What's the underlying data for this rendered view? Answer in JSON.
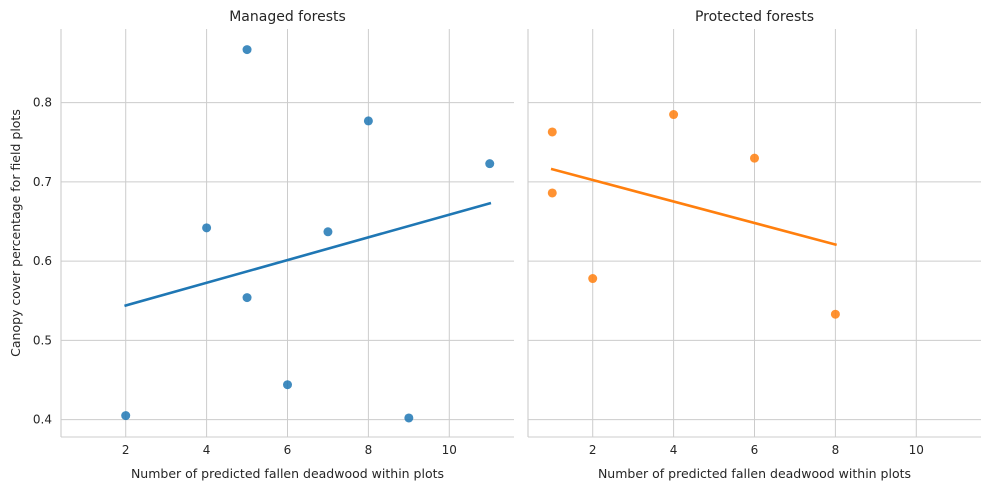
{
  "chart_data": [
    {
      "type": "scatter",
      "title": "Managed forests",
      "xlabel": "Number of predicted fallen deadwood within plots",
      "ylabel": "Canopy cover percentage for field plots",
      "xlim": [
        0.4,
        11.6
      ],
      "ylim": [
        0.378,
        0.893
      ],
      "xticks": [
        2,
        4,
        6,
        8,
        10
      ],
      "yticks": [
        0.4,
        0.5,
        0.6,
        0.7,
        0.8
      ],
      "grid": true,
      "color": "#1f77b4",
      "points": [
        {
          "x": 2,
          "y": 0.405
        },
        {
          "x": 4,
          "y": 0.642
        },
        {
          "x": 5,
          "y": 0.867
        },
        {
          "x": 5,
          "y": 0.554
        },
        {
          "x": 6,
          "y": 0.444
        },
        {
          "x": 7,
          "y": 0.637
        },
        {
          "x": 8,
          "y": 0.777
        },
        {
          "x": 9,
          "y": 0.402
        },
        {
          "x": 11,
          "y": 0.723
        }
      ],
      "regression_line": {
        "x": [
          2,
          11
        ],
        "y": [
          0.544,
          0.673
        ]
      }
    },
    {
      "type": "scatter",
      "title": "Protected forests",
      "xlabel": "Number of predicted fallen deadwood within plots",
      "ylabel": "",
      "xlim": [
        0.4,
        11.6
      ],
      "ylim": [
        0.378,
        0.893
      ],
      "xticks": [
        2,
        4,
        6,
        8,
        10
      ],
      "yticks": [
        0.4,
        0.5,
        0.6,
        0.7,
        0.8
      ],
      "grid": true,
      "color": "#ff7f0e",
      "points": [
        {
          "x": 1,
          "y": 0.763
        },
        {
          "x": 1,
          "y": 0.686
        },
        {
          "x": 2,
          "y": 0.578
        },
        {
          "x": 4,
          "y": 0.785
        },
        {
          "x": 6,
          "y": 0.73
        },
        {
          "x": 8,
          "y": 0.533
        }
      ],
      "regression_line": {
        "x": [
          1,
          8
        ],
        "y": [
          0.716,
          0.621
        ]
      }
    }
  ]
}
